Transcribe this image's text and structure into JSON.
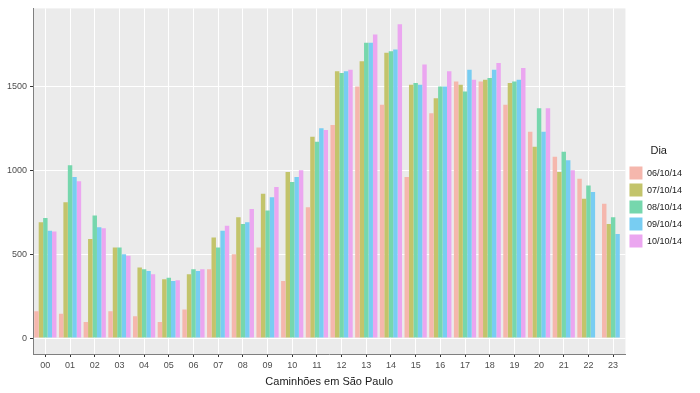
{
  "chart_data": {
    "type": "bar",
    "x_label": "Caminhões em São Paulo",
    "legend_title": "Dia",
    "legend": "right",
    "grid": true,
    "categories": [
      "00",
      "01",
      "02",
      "03",
      "04",
      "05",
      "06",
      "07",
      "08",
      "09",
      "10",
      "11",
      "12",
      "13",
      "14",
      "15",
      "16",
      "17",
      "18",
      "19",
      "20",
      "21",
      "22",
      "23"
    ],
    "series": [
      {
        "name": "06/10/14",
        "color": "#f5b7ad",
        "values": [
          160,
          145,
          95,
          160,
          130,
          95,
          170,
          410,
          500,
          540,
          340,
          780,
          1270,
          1500,
          1390,
          960,
          1340,
          1530,
          1530,
          1390,
          1230,
          1080,
          950,
          800
        ]
      },
      {
        "name": "07/10/14",
        "color": "#c3c46b",
        "values": [
          690,
          810,
          590,
          540,
          420,
          350,
          380,
          600,
          720,
          860,
          990,
          1200,
          1590,
          1650,
          1700,
          1510,
          1430,
          1510,
          1540,
          1520,
          1140,
          990,
          830,
          680
        ]
      },
      {
        "name": "08/10/14",
        "color": "#76d7ad",
        "values": [
          715,
          1030,
          730,
          540,
          410,
          360,
          410,
          540,
          680,
          760,
          930,
          1170,
          1580,
          1760,
          1710,
          1520,
          1500,
          1470,
          1550,
          1530,
          1370,
          1110,
          910,
          720
        ]
      },
      {
        "name": "09/10/14",
        "color": "#78cdf2",
        "values": [
          640,
          960,
          660,
          500,
          400,
          340,
          400,
          640,
          690,
          840,
          960,
          1250,
          1590,
          1760,
          1720,
          1510,
          1500,
          1600,
          1600,
          1540,
          1230,
          1060,
          870,
          620
        ]
      },
      {
        "name": "10/10/14",
        "color": "#eba6f0",
        "values": [
          635,
          935,
          655,
          490,
          380,
          345,
          410,
          670,
          770,
          900,
          1000,
          1240,
          1600,
          1810,
          1870,
          1630,
          1590,
          1540,
          1640,
          1610,
          1370,
          1000,
          null,
          null
        ]
      }
    ],
    "ylim": [
      -95,
      1965
    ],
    "yticks": [
      0,
      500,
      1000,
      1500
    ]
  }
}
